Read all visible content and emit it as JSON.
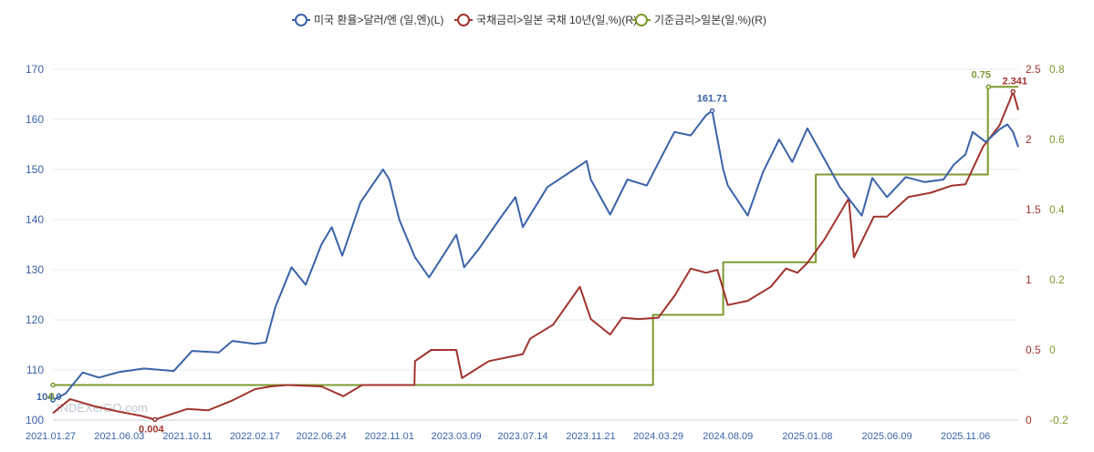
{
  "chart_data": {
    "type": "line",
    "legend": {
      "position": "top-center",
      "items": [
        {
          "name": "미국 환율>달러/엔 (일,엔)(L)",
          "color": "#3a63a8"
        },
        {
          "name": "국채금리>일본 국채 10년(일,%)(R)",
          "color": "#a0342d"
        },
        {
          "name": "기준금리>일본(일,%)(R)",
          "color": "#7d9a2f"
        }
      ]
    },
    "grid": true,
    "watermark": "INDEXerGO.com",
    "x_ticks": [
      "2021.01.27",
      "2021.06.03",
      "2021.10.11",
      "2022.02.17",
      "2022.06.24",
      "2022.11.01",
      "2023.03.09",
      "2023.07.14",
      "2023.11.21",
      "2024.03.29",
      "2024.08.09",
      "2025.01.08",
      "2025.06.09",
      "2025.11.06"
    ],
    "x_range": [
      "2021.01.27",
      "2026.02.15"
    ],
    "axes": {
      "left": {
        "ylim": [
          100,
          170
        ],
        "ticks": [
          "100",
          "110",
          "120",
          "130",
          "140",
          "150",
          "160",
          "170"
        ],
        "color": "#3a63a8"
      },
      "right1": {
        "ylim": [
          0,
          2.5
        ],
        "ticks": [
          "0",
          "0.5",
          "1",
          "1.5",
          "2",
          "2.5"
        ],
        "color": "#a0342d"
      },
      "right2": {
        "ylim": [
          -0.2,
          0.8
        ],
        "ticks": [
          "-0.2",
          "0",
          "0.2",
          "0.4",
          "0.6",
          "0.8"
        ],
        "color": "#7d9a2f"
      }
    },
    "series": [
      {
        "name": "미국 환율>달러/엔 (일,엔)(L)",
        "axis": "left",
        "color": "#3a63a8",
        "points": [
          [
            "2021.01.27",
            104.0
          ],
          [
            "2021.02.20",
            105.3
          ],
          [
            "2021.03.25",
            109.5
          ],
          [
            "2021.04.25",
            108.5
          ],
          [
            "2021.06.03",
            109.6
          ],
          [
            "2021.07.20",
            110.3
          ],
          [
            "2021.09.15",
            109.8
          ],
          [
            "2021.10.20",
            113.8
          ],
          [
            "2021.12.10",
            113.5
          ],
          [
            "2022.01.05",
            115.8
          ],
          [
            "2022.02.17",
            115.2
          ],
          [
            "2022.03.10",
            115.5
          ],
          [
            "2022.03.28",
            122.5
          ],
          [
            "2022.04.28",
            130.5
          ],
          [
            "2022.05.25",
            127.0
          ],
          [
            "2022.06.24",
            135.0
          ],
          [
            "2022.07.14",
            138.5
          ],
          [
            "2022.08.03",
            132.8
          ],
          [
            "2022.09.07",
            143.5
          ],
          [
            "2022.10.20",
            150.0
          ],
          [
            "2022.11.01",
            148.0
          ],
          [
            "2022.11.20",
            140.0
          ],
          [
            "2022.12.20",
            132.5
          ],
          [
            "2023.01.16",
            128.5
          ],
          [
            "2023.02.22",
            134.5
          ],
          [
            "2023.03.09",
            137.0
          ],
          [
            "2023.03.24",
            130.5
          ],
          [
            "2023.04.20",
            134.0
          ],
          [
            "2023.05.30",
            140.0
          ],
          [
            "2023.06.30",
            144.5
          ],
          [
            "2023.07.14",
            138.5
          ],
          [
            "2023.08.30",
            146.5
          ],
          [
            "2023.10.20",
            150.0
          ],
          [
            "2023.11.13",
            151.7
          ],
          [
            "2023.11.21",
            148.0
          ],
          [
            "2023.12.28",
            141.0
          ],
          [
            "2024.01.30",
            148.0
          ],
          [
            "2024.03.07",
            146.8
          ],
          [
            "2024.03.29",
            151.3
          ],
          [
            "2024.04.29",
            157.5
          ],
          [
            "2024.05.30",
            156.8
          ],
          [
            "2024.06.28",
            160.8
          ],
          [
            "2024.07.10",
            161.71
          ],
          [
            "2024.07.31",
            150.0
          ],
          [
            "2024.08.09",
            146.8
          ],
          [
            "2024.09.16",
            140.8
          ],
          [
            "2024.10.15",
            149.5
          ],
          [
            "2024.11.15",
            156.0
          ],
          [
            "2024.12.10",
            151.5
          ],
          [
            "2025.01.08",
            158.2
          ],
          [
            "2025.02.10",
            152.0
          ],
          [
            "2025.03.11",
            146.5
          ],
          [
            "2025.04.22",
            140.8
          ],
          [
            "2025.05.12",
            148.3
          ],
          [
            "2025.06.09",
            144.5
          ],
          [
            "2025.07.15",
            148.5
          ],
          [
            "2025.08.20",
            147.5
          ],
          [
            "2025.09.25",
            148.0
          ],
          [
            "2025.10.15",
            151.0
          ],
          [
            "2025.11.06",
            153.0
          ],
          [
            "2025.11.20",
            157.5
          ],
          [
            "2025.12.15",
            155.5
          ],
          [
            "2026.01.10",
            158.0
          ],
          [
            "2026.01.25",
            159.0
          ],
          [
            "2026.02.05",
            157.5
          ],
          [
            "2026.02.15",
            154.5
          ]
        ]
      },
      {
        "name": "국채금리>일본 국채 10년(일,%)(R)",
        "axis": "right1",
        "color": "#a0342d",
        "points": [
          [
            "2021.01.27",
            0.05
          ],
          [
            "2021.03.01",
            0.15
          ],
          [
            "2021.04.15",
            0.1
          ],
          [
            "2021.06.03",
            0.06
          ],
          [
            "2021.07.15",
            0.03
          ],
          [
            "2021.08.10",
            0.004
          ],
          [
            "2021.10.11",
            0.08
          ],
          [
            "2021.11.20",
            0.07
          ],
          [
            "2022.01.05",
            0.14
          ],
          [
            "2022.02.17",
            0.22
          ],
          [
            "2022.03.20",
            0.24
          ],
          [
            "2022.04.20",
            0.25
          ],
          [
            "2022.06.24",
            0.24
          ],
          [
            "2022.08.05",
            0.17
          ],
          [
            "2022.09.10",
            0.25
          ],
          [
            "2022.11.01",
            0.25
          ],
          [
            "2022.12.19",
            0.25
          ],
          [
            "2022.12.20",
            0.42
          ],
          [
            "2023.01.20",
            0.5
          ],
          [
            "2023.02.20",
            0.5
          ],
          [
            "2023.03.09",
            0.5
          ],
          [
            "2023.03.20",
            0.3
          ],
          [
            "2023.05.10",
            0.42
          ],
          [
            "2023.07.14",
            0.47
          ],
          [
            "2023.07.28",
            0.58
          ],
          [
            "2023.09.10",
            0.68
          ],
          [
            "2023.10.31",
            0.95
          ],
          [
            "2023.11.21",
            0.72
          ],
          [
            "2023.12.28",
            0.61
          ],
          [
            "2024.01.20",
            0.73
          ],
          [
            "2024.02.20",
            0.72
          ],
          [
            "2024.03.29",
            0.73
          ],
          [
            "2024.04.30",
            0.89
          ],
          [
            "2024.05.30",
            1.08
          ],
          [
            "2024.06.28",
            1.05
          ],
          [
            "2024.07.20",
            1.07
          ],
          [
            "2024.08.09",
            0.82
          ],
          [
            "2024.09.16",
            0.85
          ],
          [
            "2024.10.30",
            0.95
          ],
          [
            "2024.11.28",
            1.08
          ],
          [
            "2024.12.20",
            1.05
          ],
          [
            "2025.01.08",
            1.12
          ],
          [
            "2025.02.10",
            1.29
          ],
          [
            "2025.03.28",
            1.58
          ],
          [
            "2025.04.07",
            1.16
          ],
          [
            "2025.05.15",
            1.45
          ],
          [
            "2025.06.09",
            1.45
          ],
          [
            "2025.07.20",
            1.59
          ],
          [
            "2025.09.01",
            1.62
          ],
          [
            "2025.10.10",
            1.67
          ],
          [
            "2025.11.06",
            1.68
          ],
          [
            "2025.12.10",
            1.95
          ],
          [
            "2026.01.10",
            2.1
          ],
          [
            "2026.01.30",
            2.28
          ],
          [
            "2026.02.05",
            2.341
          ],
          [
            "2026.02.15",
            2.21
          ]
        ]
      },
      {
        "name": "기준금리>일본(일,%)(R)",
        "axis": "right2",
        "color": "#7d9a2f",
        "step": true,
        "points": [
          [
            "2021.01.27",
            -0.1
          ],
          [
            "2024.03.19",
            -0.1
          ],
          [
            "2024.03.19",
            0.1
          ],
          [
            "2024.07.31",
            0.1
          ],
          [
            "2024.07.31",
            0.25
          ],
          [
            "2025.01.24",
            0.25
          ],
          [
            "2025.01.24",
            0.5
          ],
          [
            "2025.12.19",
            0.5
          ],
          [
            "2025.12.19",
            0.75
          ],
          [
            "2026.02.15",
            0.75
          ]
        ]
      }
    ],
    "annotations": [
      {
        "text": "161.71",
        "series": 0,
        "at": [
          "2024.07.10",
          161.71
        ]
      },
      {
        "text": "2.341",
        "series": 1,
        "at": [
          "2026.02.05",
          2.341
        ]
      },
      {
        "text": "0.75",
        "series": 2,
        "at": [
          "2025.12.20",
          0.75
        ]
      },
      {
        "text": "0.004",
        "series": 1,
        "at": [
          "2021.08.10",
          0.004
        ]
      },
      {
        "text": "104.0",
        "series": 0,
        "at": [
          "2021.01.27",
          104.0
        ]
      },
      {
        "text": "-0",
        "series": 2,
        "at": [
          "2021.01.27",
          -0.1
        ]
      }
    ]
  }
}
